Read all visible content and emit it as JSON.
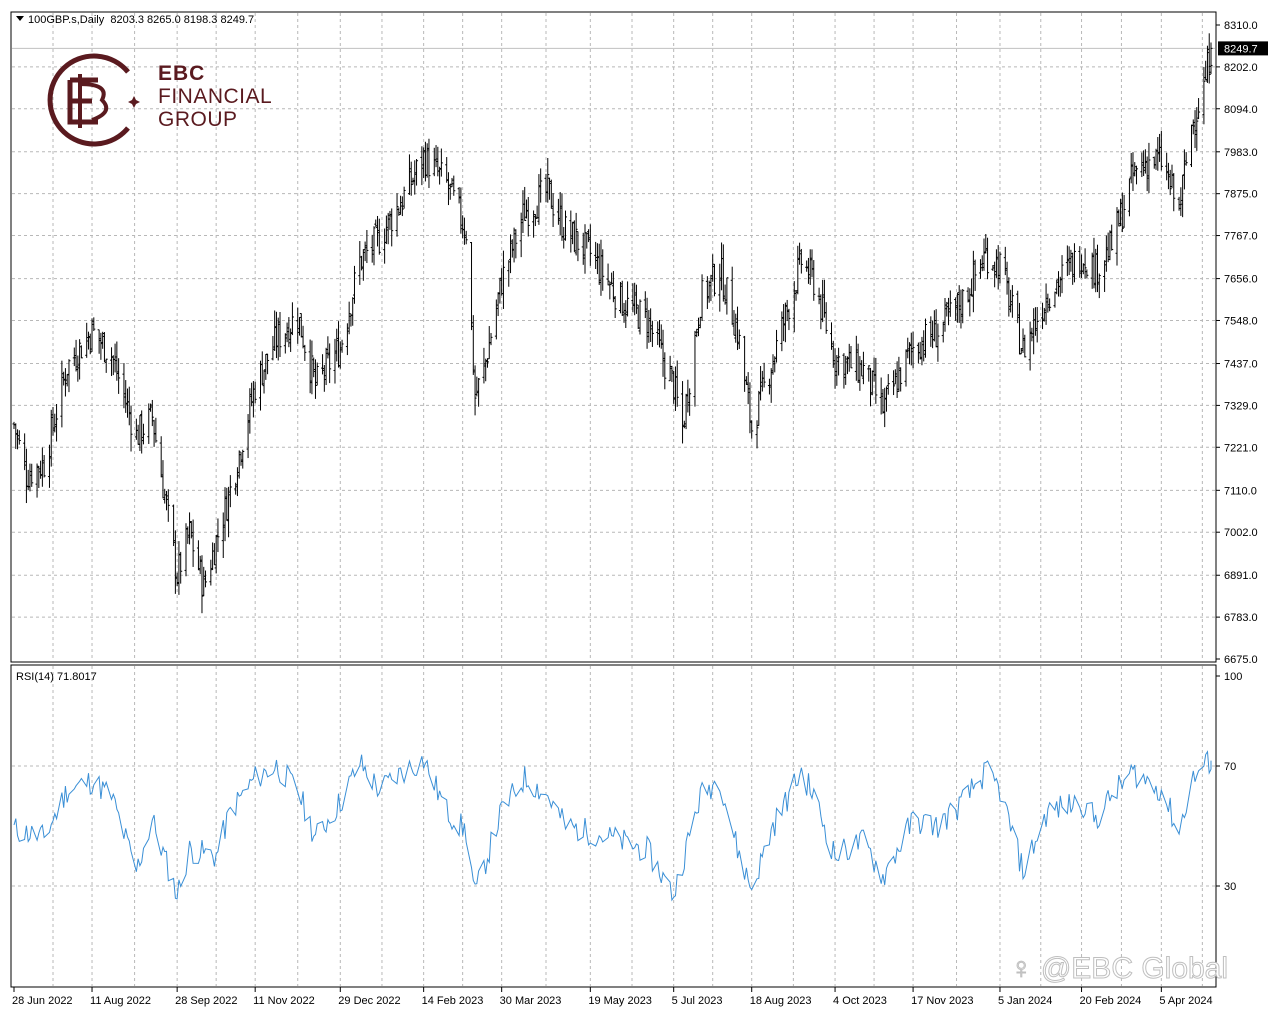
{
  "header": {
    "symbol": "100GBP.s,Daily",
    "ohlc": "8203.3 8265.0 8198.3 8249.7"
  },
  "rsi_header": "RSI(14) 71.8017",
  "logo": {
    "brand": "EBC",
    "line1": "FINANCIAL",
    "line2": "GROUP"
  },
  "watermark": "@EBC Global",
  "current_price_label": "8249.7",
  "colors": {
    "price_bars": "#000000",
    "rsi_line": "#3a8fd6",
    "grid": "#b8b8b8",
    "logo": "#5a1a1f",
    "price_tag_bg": "#000000"
  },
  "chart_data": [
    {
      "type": "ohlc",
      "title": "100GBP.s,Daily",
      "series": [
        {
          "name": "100GBP.s"
        }
      ],
      "price_axis_ticks": [
        "8310.0",
        "8202.0",
        "8094.0",
        "7983.0",
        "7875.0",
        "7767.0",
        "7656.0",
        "7548.0",
        "7437.0",
        "7329.0",
        "7221.0",
        "7110.0",
        "7002.0",
        "6891.0",
        "6783.0",
        "6675.0"
      ],
      "ylim": [
        6675,
        8310
      ],
      "last": {
        "open": 8203.3,
        "high": 8265.0,
        "low": 8198.3,
        "close": 8249.7
      },
      "close_anchors": [
        [
          "28 Jun 2022",
          7280
        ],
        [
          "5 Jul 2022",
          7150
        ],
        [
          "15 Jul 2022",
          7180
        ],
        [
          "28 Jul 2022",
          7430
        ],
        [
          "11 Aug 2022",
          7520
        ],
        [
          "22 Aug 2022",
          7460
        ],
        [
          "5 Sep 2022",
          7250
        ],
        [
          "14 Sep 2022",
          7300
        ],
        [
          "28 Sep 2022",
          6890
        ],
        [
          "5 Oct 2022",
          7000
        ],
        [
          "13 Oct 2022",
          6860
        ],
        [
          "20 Oct 2022",
          6980
        ],
        [
          "28 Oct 2022",
          7110
        ],
        [
          "11 Nov 2022",
          7380
        ],
        [
          "23 Nov 2022",
          7500
        ],
        [
          "5 Dec 2022",
          7560
        ],
        [
          "15 Dec 2022",
          7380
        ],
        [
          "29 Dec 2022",
          7480
        ],
        [
          "9 Jan 2023",
          7700
        ],
        [
          "20 Jan 2023",
          7760
        ],
        [
          "2 Feb 2023",
          7860
        ],
        [
          "14 Feb 2023",
          7970
        ],
        [
          "27 Feb 2023",
          7900
        ],
        [
          "10 Mar 2023",
          7780
        ],
        [
          "15 Mar 2023",
          7350
        ],
        [
          "20 Mar 2023",
          7420
        ],
        [
          "30 Mar 2023",
          7650
        ],
        [
          "12 Apr 2023",
          7830
        ],
        [
          "25 Apr 2023",
          7880
        ],
        [
          "5 May 2023",
          7780
        ],
        [
          "19 May 2023",
          7720
        ],
        [
          "5 Jun 2023",
          7600
        ],
        [
          "20 Jun 2023",
          7550
        ],
        [
          "5 Jul 2023",
          7380
        ],
        [
          "10 Jul 2023",
          7270
        ],
        [
          "20 Jul 2023",
          7600
        ],
        [
          "31 Jul 2023",
          7680
        ],
        [
          "10 Aug 2023",
          7520
        ],
        [
          "18 Aug 2023",
          7270
        ],
        [
          "30 Aug 2023",
          7450
        ],
        [
          "15 Sep 2023",
          7700
        ],
        [
          "22 Sep 2023",
          7650
        ],
        [
          "4 Oct 2023",
          7450
        ],
        [
          "20 Oct 2023",
          7420
        ],
        [
          "31 Oct 2023",
          7320
        ],
        [
          "17 Nov 2023",
          7480
        ],
        [
          "1 Dec 2023",
          7520
        ],
        [
          "15 Dec 2023",
          7600
        ],
        [
          "28 Dec 2023",
          7720
        ],
        [
          "5 Jan 2024",
          7690
        ],
        [
          "18 Jan 2024",
          7470
        ],
        [
          "1 Feb 2024",
          7620
        ],
        [
          "20 Feb 2024",
          7720
        ],
        [
          "28 Feb 2024",
          7680
        ],
        [
          "8 Mar 2024",
          7740
        ],
        [
          "20 Mar 2024",
          7920
        ],
        [
          "28 Mar 2024",
          7960
        ],
        [
          "5 Apr 2024",
          7960
        ],
        [
          "15 Apr 2024",
          7830
        ],
        [
          "22 Apr 2024",
          8050
        ],
        [
          "29 Apr 2024",
          8150
        ],
        [
          "3 May 2024",
          8249.7
        ]
      ]
    },
    {
      "type": "line",
      "title": "RSI(14) 71.8017",
      "series": [
        {
          "name": "RSI(14)"
        }
      ],
      "levels": [
        "100",
        "70",
        "30"
      ],
      "ylim": [
        0,
        100
      ],
      "last_value": 71.8017,
      "anchors": [
        [
          "28 Jun 2022",
          49
        ],
        [
          "15 Jul 2022",
          46
        ],
        [
          "28 Jul 2022",
          62
        ],
        [
          "11 Aug 2022",
          65
        ],
        [
          "22 Aug 2022",
          60
        ],
        [
          "5 Sep 2022",
          35
        ],
        [
          "14 Sep 2022",
          52
        ],
        [
          "28 Sep 2022",
          27
        ],
        [
          "5 Oct 2022",
          42
        ],
        [
          "20 Oct 2022",
          40
        ],
        [
          "28 Oct 2022",
          55
        ],
        [
          "11 Nov 2022",
          66
        ],
        [
          "23 Nov 2022",
          70
        ],
        [
          "5 Dec 2022",
          62
        ],
        [
          "15 Dec 2022",
          46
        ],
        [
          "29 Dec 2022",
          58
        ],
        [
          "9 Jan 2023",
          71
        ],
        [
          "20 Jan 2023",
          62
        ],
        [
          "2 Feb 2023",
          68
        ],
        [
          "14 Feb 2023",
          72
        ],
        [
          "27 Feb 2023",
          55
        ],
        [
          "10 Mar 2023",
          48
        ],
        [
          "15 Mar 2023",
          27
        ],
        [
          "30 Mar 2023",
          55
        ],
        [
          "12 Apr 2023",
          66
        ],
        [
          "25 Apr 2023",
          60
        ],
        [
          "5 May 2023",
          50
        ],
        [
          "19 May 2023",
          48
        ],
        [
          "5 Jun 2023",
          45
        ],
        [
          "20 Jun 2023",
          42
        ],
        [
          "5 Jul 2023",
          27
        ],
        [
          "20 Jul 2023",
          60
        ],
        [
          "31 Jul 2023",
          66
        ],
        [
          "10 Aug 2023",
          42
        ],
        [
          "18 Aug 2023",
          29
        ],
        [
          "30 Aug 2023",
          50
        ],
        [
          "15 Sep 2023",
          68
        ],
        [
          "22 Sep 2023",
          60
        ],
        [
          "4 Oct 2023",
          40
        ],
        [
          "20 Oct 2023",
          45
        ],
        [
          "31 Oct 2023",
          33
        ],
        [
          "17 Nov 2023",
          52
        ],
        [
          "1 Dec 2023",
          50
        ],
        [
          "15 Dec 2023",
          58
        ],
        [
          "28 Dec 2023",
          68
        ],
        [
          "5 Jan 2024",
          62
        ],
        [
          "18 Jan 2024",
          35
        ],
        [
          "1 Feb 2024",
          55
        ],
        [
          "20 Feb 2024",
          58
        ],
        [
          "28 Feb 2024",
          52
        ],
        [
          "8 Mar 2024",
          60
        ],
        [
          "20 Mar 2024",
          68
        ],
        [
          "28 Mar 2024",
          65
        ],
        [
          "5 Apr 2024",
          62
        ],
        [
          "15 Apr 2024",
          48
        ],
        [
          "22 Apr 2024",
          65
        ],
        [
          "29 Apr 2024",
          70
        ],
        [
          "3 May 2024",
          71.8
        ]
      ]
    }
  ],
  "time_axis": [
    "28 Jun 2022",
    "11 Aug 2022",
    "28 Sep 2022",
    "11 Nov 2022",
    "29 Dec 2022",
    "14 Feb 2023",
    "30 Mar 2023",
    "19 May 2023",
    "5 Jul 2023",
    "18 Aug 2023",
    "4 Oct 2023",
    "17 Nov 2023",
    "5 Jan 2024",
    "20 Feb 2024",
    "5 Apr 2024"
  ]
}
